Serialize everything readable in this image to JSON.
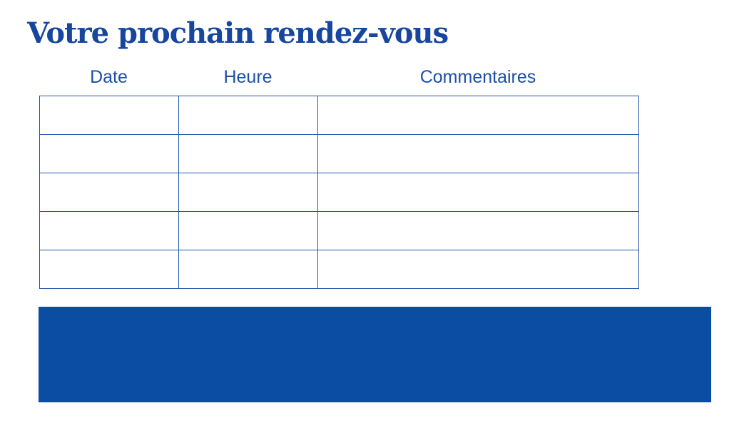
{
  "title": "Votre prochain rendez-vous",
  "table": {
    "headers": [
      "Date",
      "Heure",
      "Commentaires"
    ],
    "column_keys": [
      "date",
      "heure",
      "commentaires"
    ],
    "rows": [
      {
        "date": "",
        "heure": "",
        "commentaires": ""
      },
      {
        "date": "",
        "heure": "",
        "commentaires": ""
      },
      {
        "date": "",
        "heure": "",
        "commentaires": ""
      },
      {
        "date": "",
        "heure": "",
        "commentaires": ""
      },
      {
        "date": "",
        "heure": "",
        "commentaires": ""
      }
    ]
  },
  "colors": {
    "background": "#FFFFFF",
    "title_blue": "#16469E",
    "header_blue": "#1D50A5",
    "border_blue": "#2456A9",
    "banner_blue": "#0B4DA2"
  }
}
